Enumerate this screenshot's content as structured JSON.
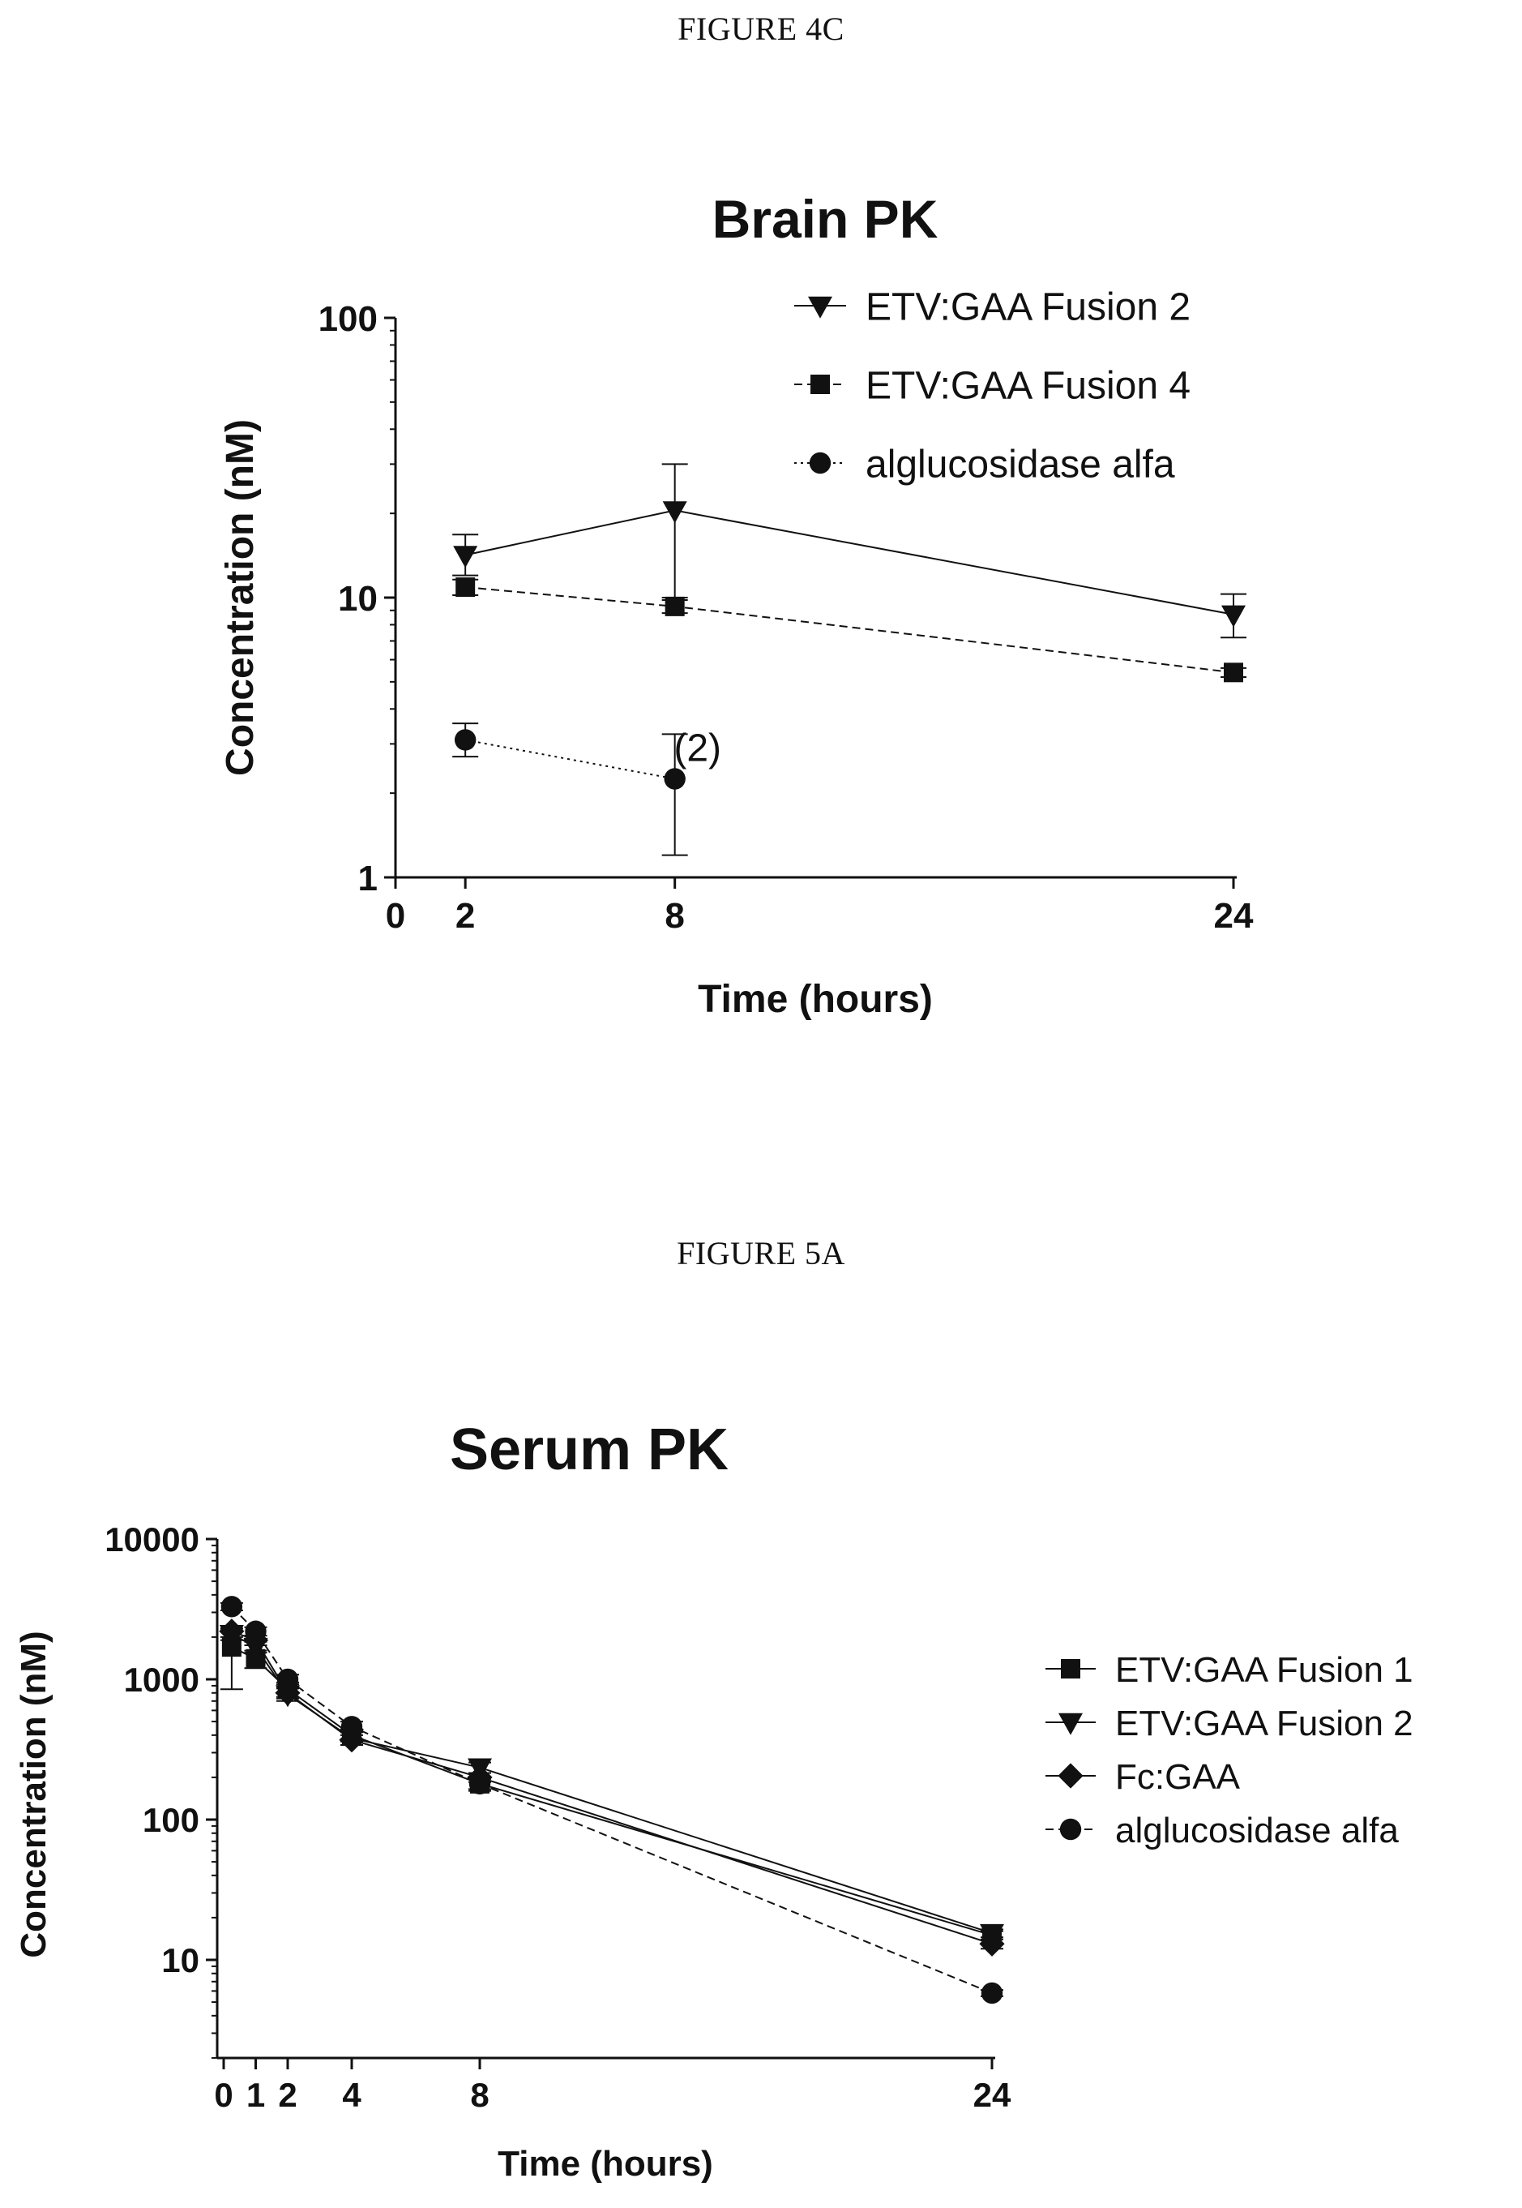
{
  "captions": {
    "fig4c": "FIGURE 4C",
    "fig5a": "FIGURE 5A"
  },
  "chart_data": [
    {
      "id": "fig4c",
      "type": "line",
      "title": "Brain PK",
      "xlabel": "Time (hours)",
      "ylabel": "Concentration  (nM)",
      "yscale": "log",
      "ylim": [
        1,
        100
      ],
      "xlim": [
        0,
        24
      ],
      "xticks": [
        0,
        2,
        8,
        24
      ],
      "yticks": [
        1,
        10,
        100
      ],
      "legend_position": "top-right",
      "grid": false,
      "series": [
        {
          "name": "ETV:GAA Fusion 2",
          "marker": "triangle-down",
          "line_style": "solid",
          "x": [
            2,
            8,
            24
          ],
          "y": [
            14.2,
            20.5,
            8.7
          ],
          "err_low": [
            12.0,
            10.0,
            7.2
          ],
          "err_high": [
            16.8,
            30.0,
            10.3
          ]
        },
        {
          "name": "ETV:GAA Fusion 4",
          "marker": "square",
          "line_style": "dashed",
          "x": [
            2,
            8,
            24
          ],
          "y": [
            10.9,
            9.3,
            5.4
          ],
          "err_low": [
            10.2,
            8.8,
            5.2
          ],
          "err_high": [
            11.6,
            9.8,
            5.6
          ]
        },
        {
          "name": "alglucosidase alfa",
          "marker": "circle",
          "line_style": "dotted",
          "x": [
            2,
            8
          ],
          "y": [
            3.1,
            2.25
          ],
          "err_low": [
            2.7,
            1.2
          ],
          "err_high": [
            3.55,
            3.25
          ]
        }
      ],
      "annotations": [
        {
          "text": "(2)",
          "x": 8,
          "y": 2.9
        }
      ]
    },
    {
      "id": "fig5a",
      "type": "line",
      "title": "Serum PK",
      "xlabel": "Time (hours)",
      "ylabel": "Concentration  (nM)",
      "yscale": "log",
      "ylim": [
        1,
        10000
      ],
      "xlim": [
        0,
        24
      ],
      "xticks": [
        0,
        1,
        2,
        4,
        8,
        24
      ],
      "yticks": [
        10,
        100,
        1000,
        10000
      ],
      "legend_position": "right",
      "grid": false,
      "series": [
        {
          "name": "ETV:GAA Fusion 1",
          "marker": "square",
          "line_style": "solid",
          "x": [
            0.25,
            1,
            2,
            4,
            8,
            24
          ],
          "y": [
            1700,
            1400,
            850,
            400,
            180,
            15
          ],
          "err_low": [
            850,
            1200,
            750,
            360,
            160,
            14
          ],
          "err_high": [
            2300,
            1600,
            950,
            440,
            200,
            16
          ]
        },
        {
          "name": "ETV:GAA Fusion 2",
          "marker": "triangle-down",
          "line_style": "solid",
          "x": [
            0.25,
            1,
            2,
            4,
            8,
            24
          ],
          "y": [
            2100,
            1700,
            780,
            380,
            235,
            15.5
          ],
          "err_low": [
            1900,
            1550,
            700,
            340,
            215,
            14.5
          ],
          "err_high": [
            2300,
            1850,
            860,
            420,
            255,
            16.5
          ]
        },
        {
          "name": "Fc:GAA",
          "marker": "diamond",
          "line_style": "solid",
          "x": [
            0.25,
            1,
            2,
            4,
            8,
            24
          ],
          "y": [
            2200,
            1900,
            800,
            370,
            200,
            13
          ],
          "err_low": [
            2000,
            1750,
            730,
            340,
            185,
            12
          ],
          "err_high": [
            2400,
            2050,
            870,
            400,
            215,
            14
          ]
        },
        {
          "name": "alglucosidase alfa",
          "marker": "circle",
          "line_style": "dashed",
          "x": [
            0.25,
            1,
            2,
            4,
            8,
            24
          ],
          "y": [
            3300,
            2200,
            1000,
            460,
            180,
            5.8
          ],
          "err_low": [
            3100,
            2050,
            920,
            420,
            165,
            5.5
          ],
          "err_high": [
            3500,
            2350,
            1080,
            500,
            195,
            6.1
          ]
        }
      ]
    }
  ]
}
